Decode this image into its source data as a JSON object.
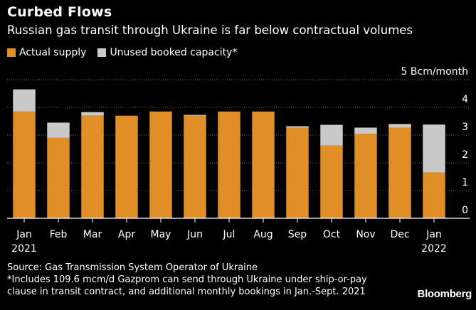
{
  "header": {
    "title": "Curbed Flows",
    "subtitle": "Russian gas transit through Ukraine is far below contractual volumes"
  },
  "footer": {
    "source": "Source: Gas Transmission System Operator of Ukraine",
    "note_line1": "*Includes 109.6 mcm/d Gazprom can send through Ukraine under ship-or-pay",
    "note_line2": "clause in transit contract, and additional monthly bookings in Jan.-Sept. 2021",
    "logo": "Bloomberg"
  },
  "colors": {
    "actual": "#e08e27",
    "unused": "#c9c9c9",
    "background": "#000000",
    "grid": "#666666",
    "text": "#ffffff"
  },
  "chart_data": {
    "type": "bar",
    "stacked": true,
    "unit_label": "5 Bcm/month",
    "categories": [
      "Jan",
      "Feb",
      "Mar",
      "Apr",
      "May",
      "Jun",
      "Jul",
      "Aug",
      "Sep",
      "Oct",
      "Nov",
      "Dec",
      "Jan"
    ],
    "year_labels": [
      "2021",
      "",
      "",
      "",
      "",
      "",
      "",
      "",
      "",
      "",
      "",
      "",
      "2022"
    ],
    "series": [
      {
        "name": "Actual supply",
        "values": [
          3.85,
          2.9,
          3.7,
          3.7,
          3.85,
          3.7,
          3.85,
          3.85,
          3.27,
          2.62,
          3.05,
          3.27,
          1.65
        ]
      },
      {
        "name": "Unused booked capacity*",
        "values": [
          0.8,
          0.55,
          0.13,
          0.0,
          0.0,
          0.03,
          0.0,
          0.0,
          0.05,
          0.75,
          0.22,
          0.13,
          1.73
        ]
      }
    ],
    "y_ticks": [
      "0",
      "1",
      "2",
      "3",
      "4"
    ],
    "ylim": [
      0,
      5
    ],
    "grid": true,
    "y_axis_position": "right",
    "legend_position": "top-left"
  }
}
